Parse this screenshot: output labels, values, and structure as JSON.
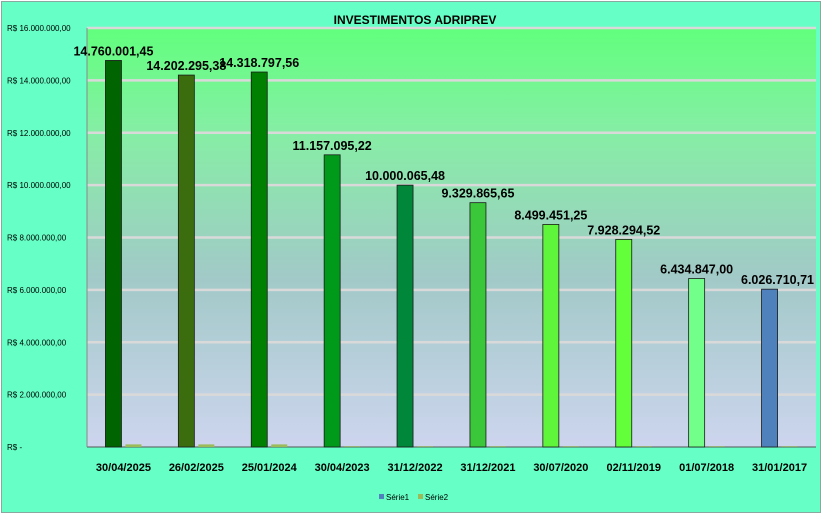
{
  "chart_data": {
    "type": "bar",
    "title": "INVESTIMENTOS ADRIPREV",
    "categories": [
      "30/04/2025",
      "26/02/2025",
      "25/01/2024",
      "30/04/2023",
      "31/12/2022",
      "31/12/2021",
      "30/07/2020",
      "02/11/2019",
      "01/07/2018",
      "31/01/2017"
    ],
    "series": [
      {
        "name": "Série1",
        "values": [
          14760001.45,
          14202295.38,
          14318797.56,
          11157095.22,
          10000065.48,
          9329865.65,
          8499451.25,
          7928294.52,
          6434847.0,
          6026710.71
        ],
        "color": "#4f81bd"
      },
      {
        "name": "Série2",
        "values": [
          100000,
          100000,
          100000,
          0,
          0,
          0,
          0,
          0,
          0,
          0
        ],
        "color": "#9bbb59"
      }
    ],
    "data_labels": [
      "14.760.001,45",
      "14.202.295,38",
      "14.318.797,56",
      "11.157.095,22",
      "10.000.065,48",
      "9.329.865,65",
      "8.499.451,25",
      "7.928.294,52",
      "6.434.847,00",
      "6.026.710,71"
    ],
    "bar_colors": [
      "#006400",
      "#3b6d0f",
      "#008000",
      "#009a1a",
      "#00873a",
      "#3ac83a",
      "#5ef53a",
      "#62ff3a",
      "#72ff8a",
      "#4f81bd"
    ],
    "yticks": [
      0,
      2000000,
      4000000,
      6000000,
      8000000,
      10000000,
      12000000,
      14000000,
      16000000
    ],
    "ytick_labels": [
      "R$ -",
      "R$ 2.000.000,00",
      "R$ 4.000.000,00",
      "R$ 6.000.000,00",
      "R$ 8.000.000,00",
      "R$ 10.000.000,00",
      "R$ 12.000.000,00",
      "R$ 14.000.000,00",
      "R$ 16.000.000,00"
    ],
    "ylim": [
      0,
      16000000
    ],
    "grid": true,
    "legend": "bottom",
    "xlabel": "",
    "ylabel": ""
  }
}
